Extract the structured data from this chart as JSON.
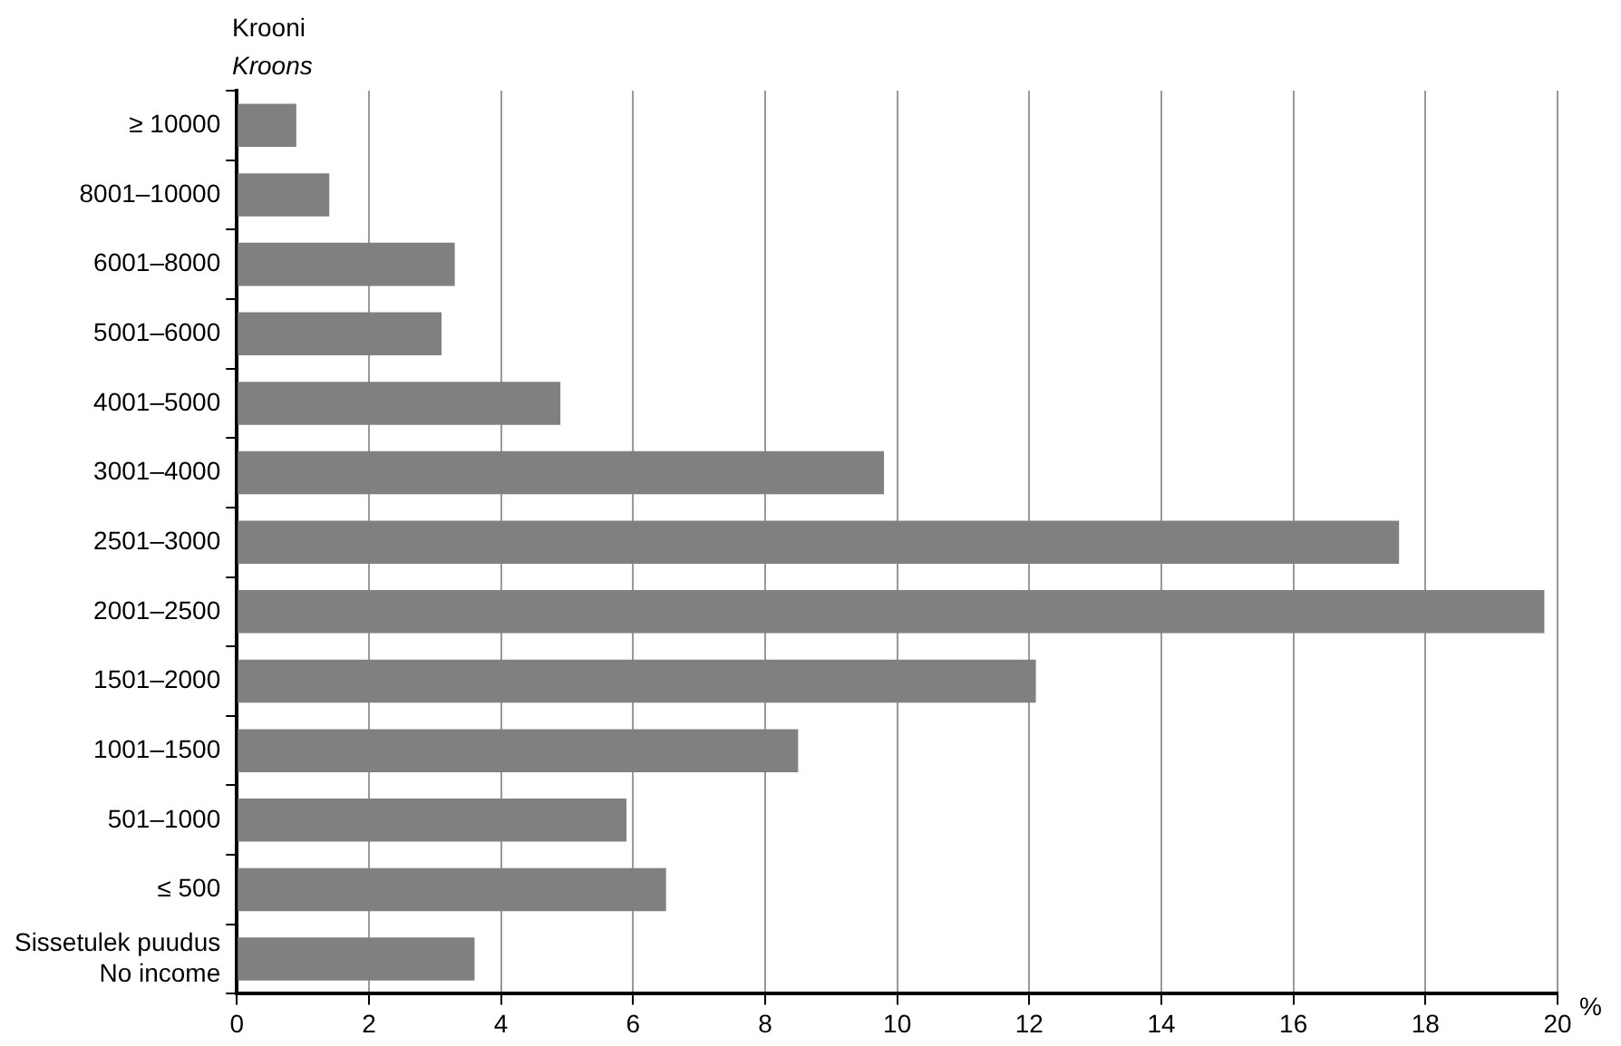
{
  "chart_data": {
    "type": "bar",
    "orientation": "horizontal",
    "ylabel": "Krooni\nKroons",
    "xlabel": "%",
    "categories": [
      "≥ 10000",
      "8001–10000",
      "6001–8000",
      "5001–6000",
      "4001–5000",
      "3001–4000",
      "2501–3000",
      "2001–2500",
      "1501–2000",
      "1001–1500",
      "501–1000",
      "≤ 500",
      "Sissetulek puudus\nNo income"
    ],
    "values": [
      0.9,
      1.4,
      3.3,
      3.1,
      4.9,
      9.8,
      17.6,
      19.8,
      12.1,
      8.5,
      5.9,
      6.5,
      3.6
    ],
    "color": "#808080",
    "xlim": [
      0,
      20
    ],
    "xticks": [
      0,
      2,
      4,
      6,
      8,
      10,
      12,
      14,
      16,
      18,
      20
    ],
    "grid": "x",
    "legend": false
  }
}
